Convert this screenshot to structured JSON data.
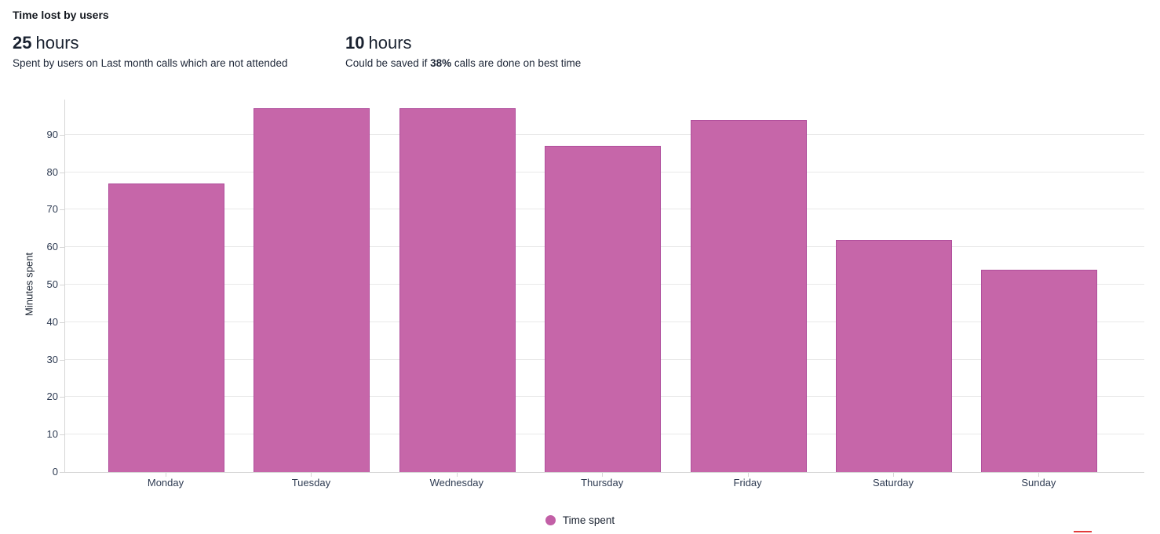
{
  "header": {
    "title": "Time lost by users",
    "stats": [
      {
        "value": "25",
        "unit": "hours",
        "desc_prefix": "Spent by users on Last month calls which are not attended",
        "desc_bold": "",
        "desc_suffix": ""
      },
      {
        "value": "10",
        "unit": "hours",
        "desc_prefix": "Could be saved if ",
        "desc_bold": "38%",
        "desc_suffix": " calls are done on best time"
      }
    ]
  },
  "chart_data": {
    "type": "bar",
    "title": "Time lost by users",
    "categories": [
      "Monday",
      "Tuesday",
      "Wednesday",
      "Thursday",
      "Friday",
      "Saturday",
      "Sunday"
    ],
    "series": [
      {
        "name": "Time spent",
        "values": [
          77,
          97,
          97,
          87,
          94,
          62,
          54
        ]
      }
    ],
    "xlabel": "",
    "ylabel": "Minutes spent",
    "yticks": [
      0,
      10,
      20,
      30,
      40,
      50,
      60,
      70,
      80,
      90
    ],
    "ylim": [
      0,
      100
    ],
    "grid": true,
    "legend": {
      "position": "bottom",
      "items": [
        {
          "label": "Time spent",
          "color": "#c25fa6"
        }
      ]
    }
  },
  "colors": {
    "bar_fill": "#c666a9",
    "bar_border": "#b04e9c",
    "gridline": "#e9e9e9",
    "axis_line": "#d6d6d6",
    "axis_text": "#2e3b52",
    "text_dark": "#1a2230",
    "red_mark": "#e23c3c"
  }
}
